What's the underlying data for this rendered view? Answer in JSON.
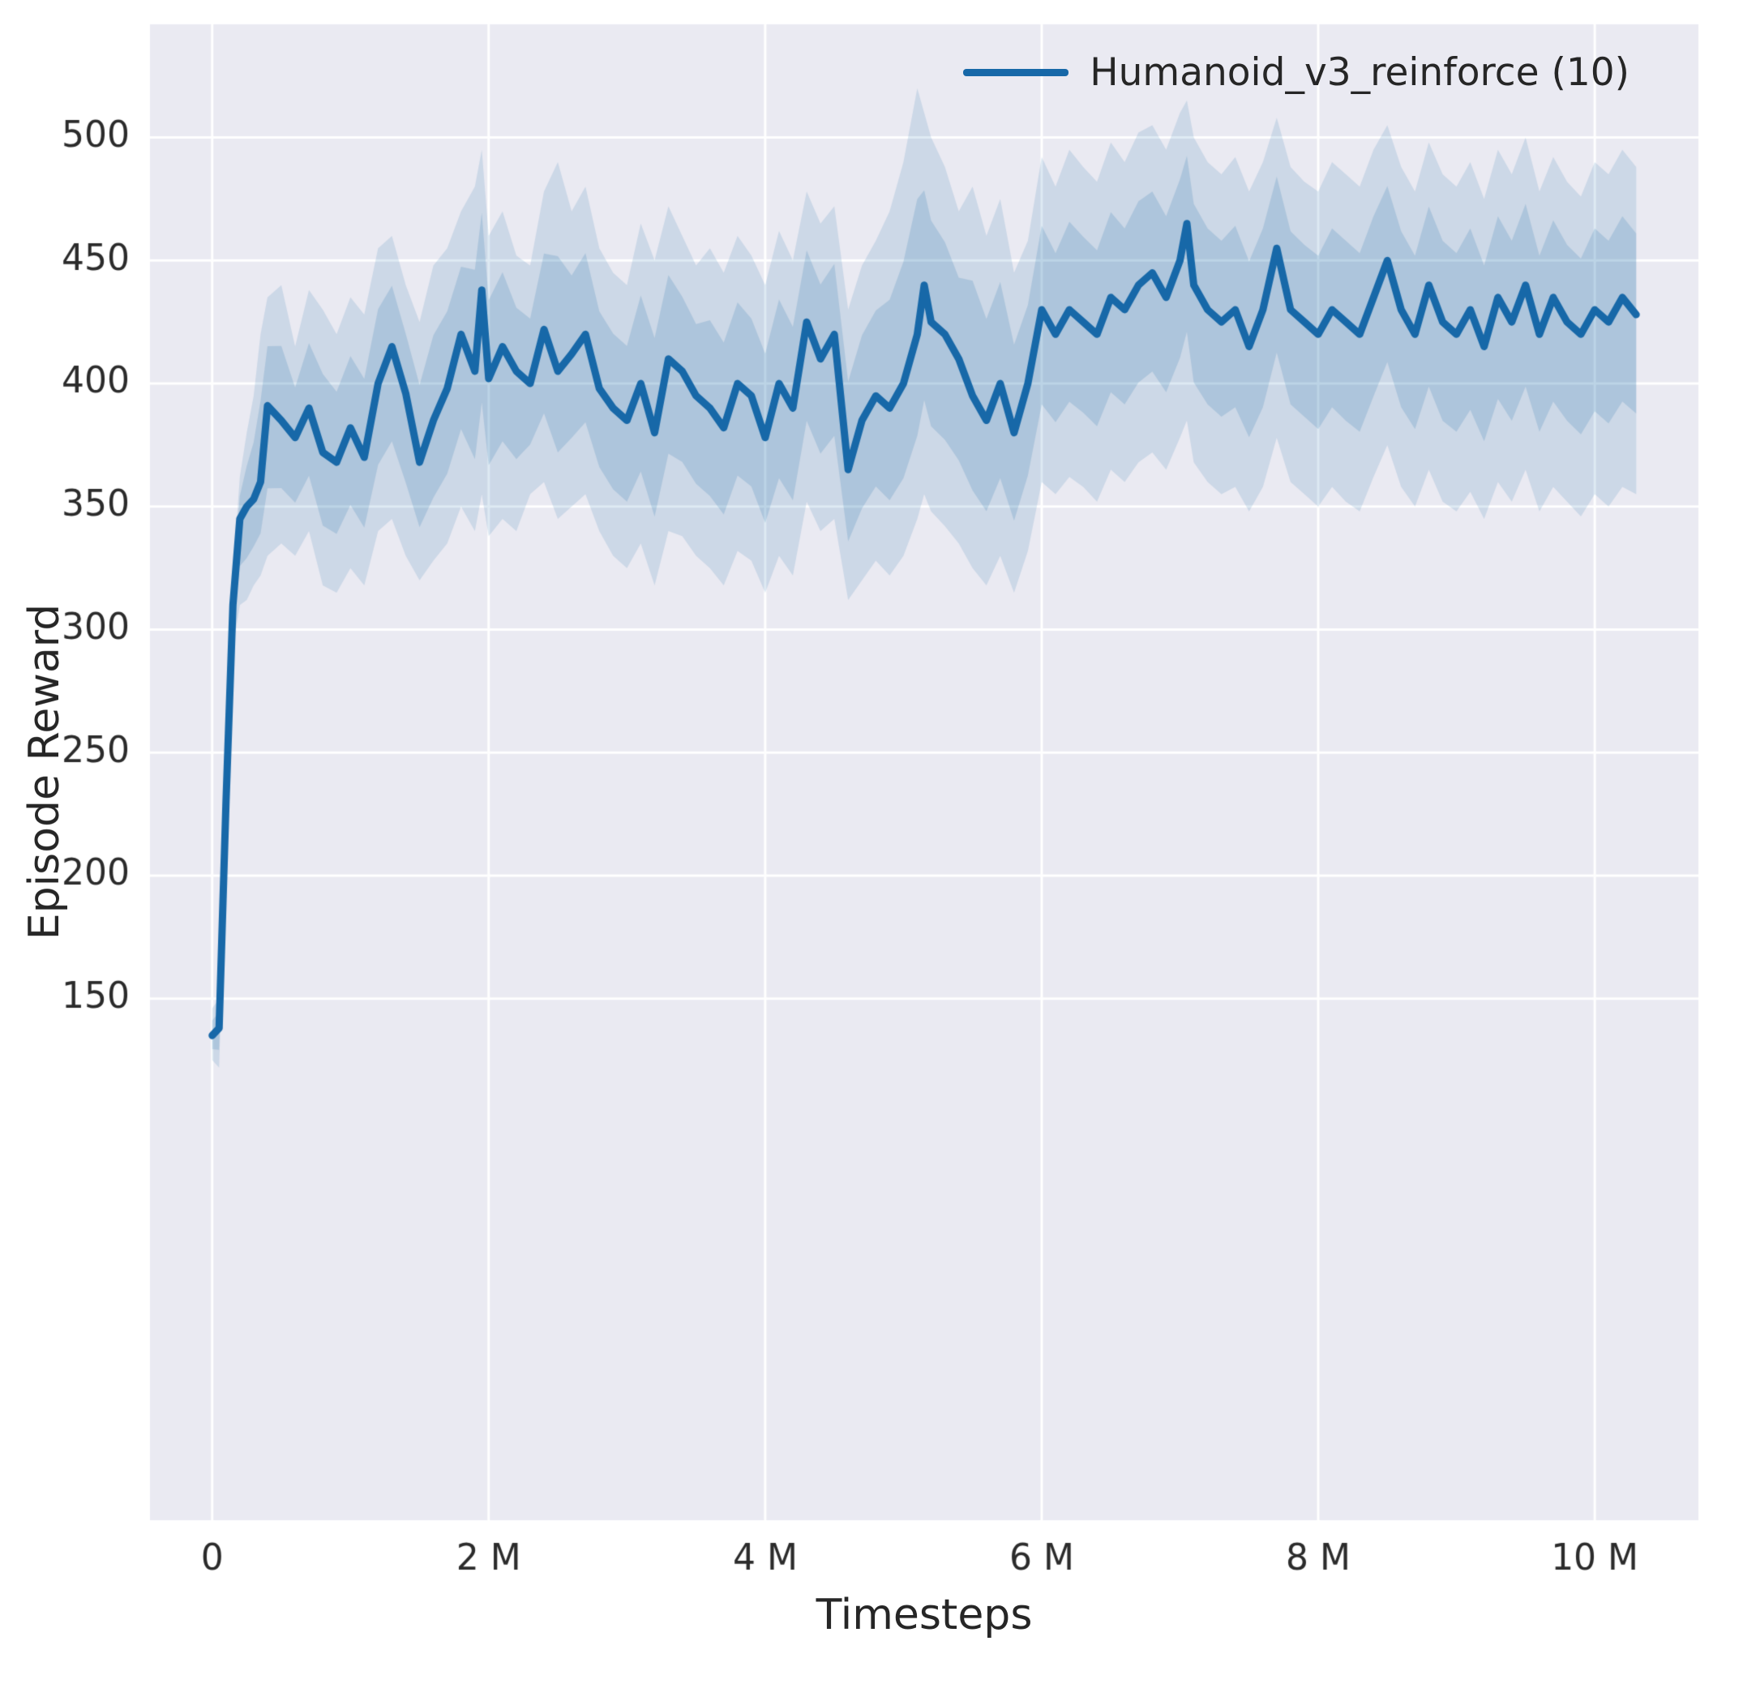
{
  "chart_data": {
    "type": "line",
    "title": "",
    "xlabel": "Timesteps",
    "ylabel": "Episode Reward",
    "x_unit": "millions of timesteps",
    "xlim": [
      -0.45,
      10.75
    ],
    "ylim": [
      -62,
      546
    ],
    "grid": true,
    "legend_position": "upper right",
    "styles": {
      "axes_bg": "#eaeaf2",
      "grid_color": "#ffffff",
      "text_color": "#2b2b2b",
      "line_width": 9,
      "band_outer_alpha": 0.14,
      "band_inner_alpha": 0.17,
      "band_inner_ratio": 0.55
    },
    "xticks": {
      "values": [
        0,
        2,
        4,
        6,
        8,
        10
      ],
      "labels": [
        "0",
        "2 M",
        "4 M",
        "6 M",
        "8 M",
        "10 M"
      ]
    },
    "yticks": {
      "values": [
        150,
        200,
        250,
        300,
        350,
        400,
        450,
        500
      ],
      "labels": [
        "150",
        "200",
        "250",
        "300",
        "350",
        "400",
        "450",
        "500"
      ]
    },
    "series": [
      {
        "name": "Humanoid_v3_reinforce (10)",
        "color": "#1768a8",
        "points_format": [
          "x_millions",
          "mean",
          "band_low",
          "band_high"
        ],
        "points": [
          [
            0.0,
            135,
            125,
            146
          ],
          [
            0.05,
            138,
            122,
            150
          ],
          [
            0.1,
            230,
            212,
            245
          ],
          [
            0.15,
            310,
            293,
            322
          ],
          [
            0.2,
            345,
            310,
            362
          ],
          [
            0.25,
            350,
            312,
            380
          ],
          [
            0.3,
            353,
            318,
            395
          ],
          [
            0.35,
            360,
            322,
            420
          ],
          [
            0.4,
            391,
            330,
            435
          ],
          [
            0.5,
            385,
            335,
            440
          ],
          [
            0.6,
            378,
            330,
            415
          ],
          [
            0.7,
            390,
            340,
            438
          ],
          [
            0.8,
            372,
            318,
            430
          ],
          [
            0.9,
            368,
            315,
            420
          ],
          [
            1.0,
            382,
            325,
            435
          ],
          [
            1.1,
            370,
            318,
            428
          ],
          [
            1.2,
            400,
            340,
            455
          ],
          [
            1.3,
            415,
            345,
            460
          ],
          [
            1.4,
            396,
            330,
            440
          ],
          [
            1.5,
            368,
            320,
            425
          ],
          [
            1.6,
            385,
            328,
            448
          ],
          [
            1.7,
            398,
            335,
            455
          ],
          [
            1.8,
            420,
            350,
            470
          ],
          [
            1.9,
            405,
            340,
            480
          ],
          [
            1.95,
            438,
            355,
            495
          ],
          [
            2.0,
            402,
            338,
            460
          ],
          [
            2.1,
            415,
            345,
            470
          ],
          [
            2.2,
            405,
            340,
            452
          ],
          [
            2.3,
            400,
            355,
            448
          ],
          [
            2.4,
            422,
            360,
            478
          ],
          [
            2.5,
            405,
            345,
            490
          ],
          [
            2.6,
            412,
            350,
            470
          ],
          [
            2.7,
            420,
            355,
            480
          ],
          [
            2.8,
            398,
            340,
            455
          ],
          [
            2.9,
            390,
            330,
            445
          ],
          [
            3.0,
            385,
            325,
            440
          ],
          [
            3.1,
            400,
            335,
            465
          ],
          [
            3.2,
            380,
            318,
            450
          ],
          [
            3.3,
            410,
            340,
            472
          ],
          [
            3.4,
            405,
            338,
            460
          ],
          [
            3.5,
            395,
            330,
            448
          ],
          [
            3.6,
            390,
            325,
            455
          ],
          [
            3.7,
            382,
            318,
            445
          ],
          [
            3.8,
            400,
            332,
            460
          ],
          [
            3.9,
            395,
            328,
            452
          ],
          [
            4.0,
            378,
            315,
            440
          ],
          [
            4.1,
            400,
            330,
            462
          ],
          [
            4.2,
            390,
            322,
            450
          ],
          [
            4.3,
            425,
            352,
            478
          ],
          [
            4.4,
            410,
            340,
            465
          ],
          [
            4.5,
            420,
            345,
            472
          ],
          [
            4.6,
            365,
            312,
            430
          ],
          [
            4.7,
            385,
            320,
            448
          ],
          [
            4.8,
            395,
            328,
            458
          ],
          [
            4.9,
            390,
            322,
            470
          ],
          [
            5.0,
            400,
            330,
            490
          ],
          [
            5.1,
            420,
            345,
            520
          ],
          [
            5.15,
            440,
            355,
            510
          ],
          [
            5.2,
            425,
            348,
            500
          ],
          [
            5.3,
            420,
            342,
            488
          ],
          [
            5.4,
            410,
            335,
            470
          ],
          [
            5.5,
            395,
            325,
            480
          ],
          [
            5.6,
            385,
            318,
            460
          ],
          [
            5.7,
            400,
            330,
            475
          ],
          [
            5.8,
            380,
            315,
            445
          ],
          [
            5.9,
            400,
            332,
            458
          ],
          [
            6.0,
            430,
            360,
            492
          ],
          [
            6.1,
            420,
            355,
            480
          ],
          [
            6.2,
            430,
            362,
            495
          ],
          [
            6.3,
            425,
            358,
            488
          ],
          [
            6.4,
            420,
            352,
            482
          ],
          [
            6.5,
            435,
            365,
            498
          ],
          [
            6.6,
            430,
            360,
            490
          ],
          [
            6.7,
            440,
            368,
            502
          ],
          [
            6.8,
            445,
            372,
            505
          ],
          [
            6.9,
            435,
            365,
            495
          ],
          [
            7.0,
            450,
            378,
            510
          ],
          [
            7.05,
            465,
            385,
            515
          ],
          [
            7.1,
            440,
            368,
            500
          ],
          [
            7.2,
            430,
            360,
            490
          ],
          [
            7.3,
            425,
            355,
            485
          ],
          [
            7.4,
            430,
            358,
            492
          ],
          [
            7.5,
            415,
            348,
            478
          ],
          [
            7.6,
            430,
            358,
            490
          ],
          [
            7.7,
            455,
            378,
            508
          ],
          [
            7.8,
            430,
            360,
            488
          ],
          [
            7.9,
            425,
            355,
            482
          ],
          [
            8.0,
            420,
            350,
            478
          ],
          [
            8.1,
            430,
            358,
            490
          ],
          [
            8.2,
            425,
            352,
            485
          ],
          [
            8.3,
            420,
            348,
            480
          ],
          [
            8.4,
            435,
            362,
            495
          ],
          [
            8.5,
            450,
            375,
            505
          ],
          [
            8.6,
            430,
            358,
            488
          ],
          [
            8.7,
            420,
            350,
            478
          ],
          [
            8.8,
            440,
            365,
            498
          ],
          [
            8.9,
            425,
            352,
            485
          ],
          [
            9.0,
            420,
            348,
            480
          ],
          [
            9.1,
            430,
            356,
            490
          ],
          [
            9.2,
            415,
            345,
            475
          ],
          [
            9.3,
            435,
            360,
            495
          ],
          [
            9.4,
            425,
            352,
            485
          ],
          [
            9.5,
            440,
            365,
            500
          ],
          [
            9.6,
            420,
            348,
            478
          ],
          [
            9.7,
            435,
            358,
            492
          ],
          [
            9.8,
            425,
            352,
            482
          ],
          [
            9.9,
            420,
            346,
            476
          ],
          [
            10.0,
            430,
            355,
            490
          ],
          [
            10.1,
            425,
            350,
            485
          ],
          [
            10.2,
            435,
            358,
            495
          ],
          [
            10.3,
            428,
            355,
            488
          ]
        ]
      }
    ]
  }
}
